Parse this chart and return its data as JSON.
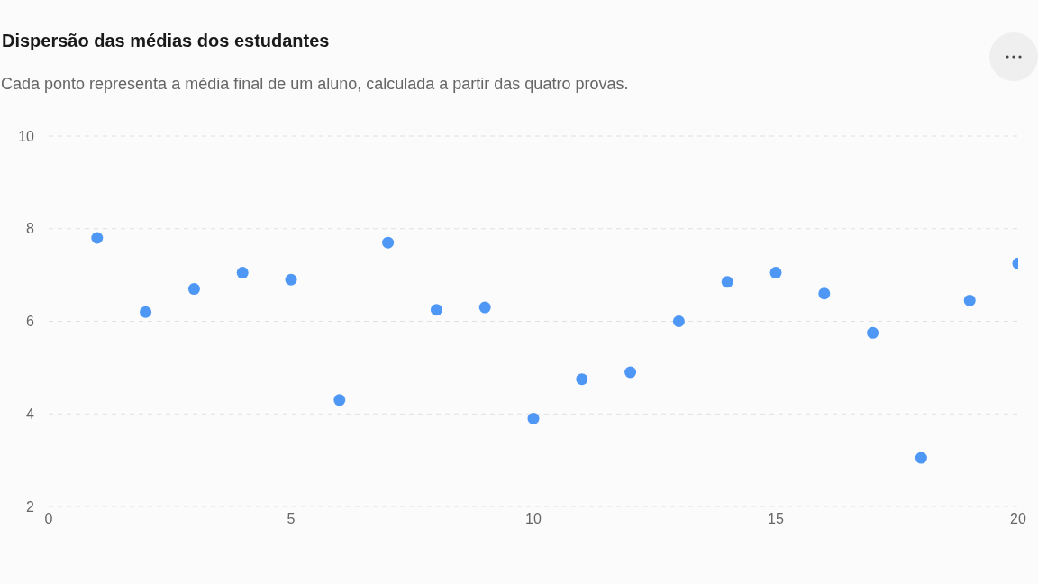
{
  "chart_data": {
    "type": "scatter",
    "title": "Dispersão das médias dos estudantes",
    "subtitle": "Cada ponto representa a média final de um aluno, calculada a partir das quatro provas.",
    "x": [
      1,
      2,
      3,
      4,
      5,
      6,
      7,
      8,
      9,
      10,
      11,
      12,
      13,
      14,
      15,
      16,
      17,
      18,
      19,
      20
    ],
    "series": [
      {
        "color": "#4e97f5",
        "values": [
          7.8,
          6.2,
          6.7,
          7.05,
          6.9,
          4.3,
          7.7,
          6.25,
          6.3,
          3.9,
          4.75,
          4.9,
          6.0,
          6.85,
          7.05,
          6.6,
          5.75,
          3.05,
          6.45,
          7.25
        ]
      }
    ],
    "xlim": [
      0,
      20
    ],
    "xticks": [
      0,
      5,
      10,
      15,
      20
    ],
    "ylim": [
      2,
      10
    ],
    "yticks": [
      2,
      4,
      6,
      8,
      10
    ],
    "grid": "y",
    "marker": "circle",
    "legend": false
  }
}
